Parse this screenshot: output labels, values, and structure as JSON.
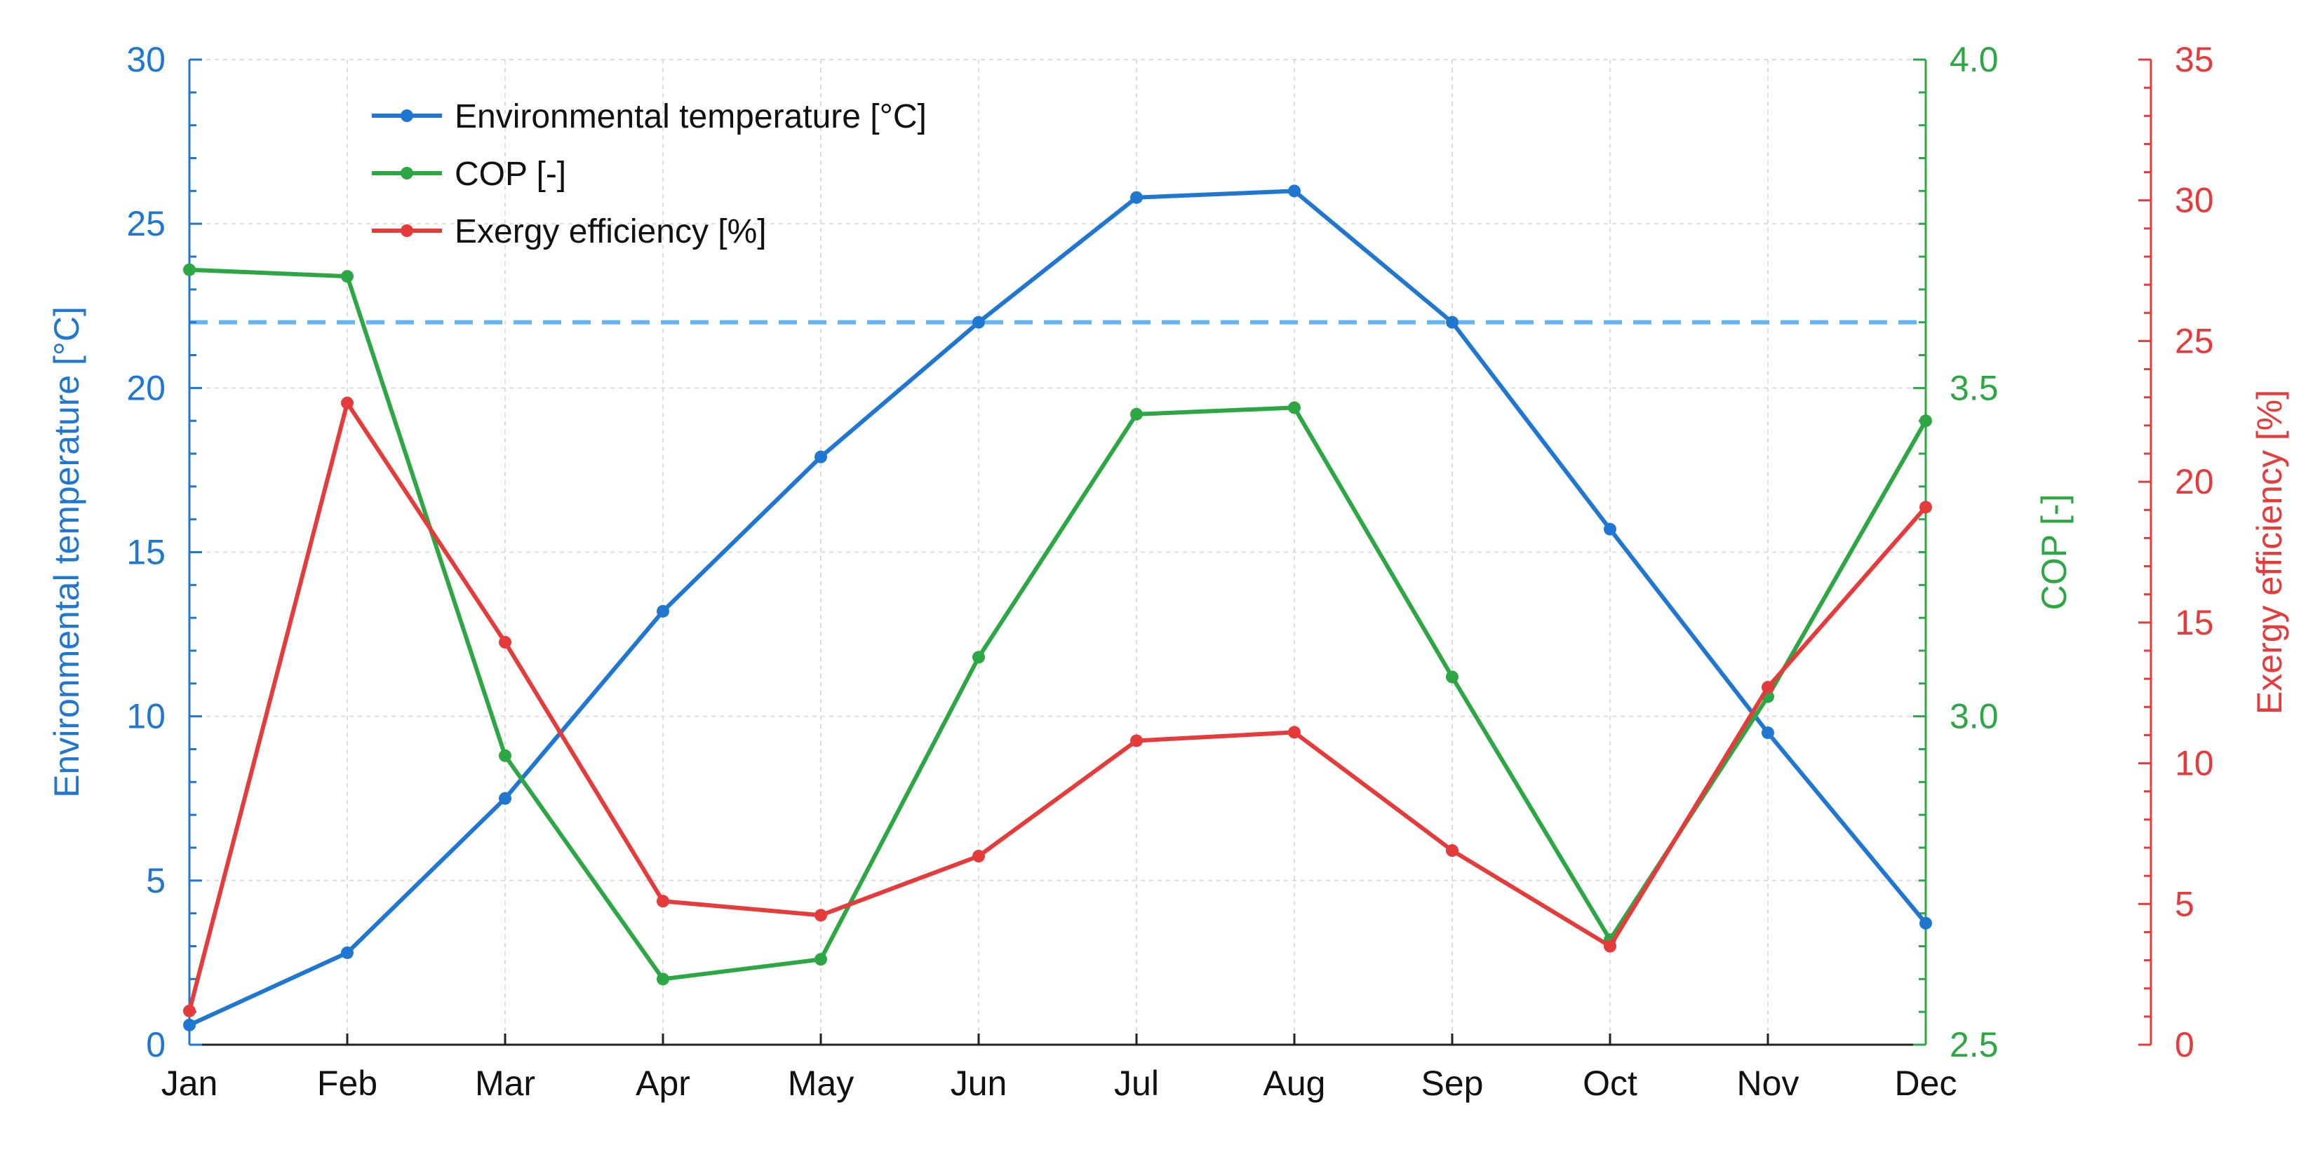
{
  "colors": {
    "temperature": "#1f77d2",
    "cop": "#2ca744",
    "exergy": "#e63b3b",
    "reference_line": "#64b5f6",
    "grid": "#dddddd",
    "axis": "#222222"
  },
  "chart_data": {
    "type": "line",
    "categories": [
      "Jan",
      "Feb",
      "Mar",
      "Apr",
      "May",
      "Jun",
      "Jul",
      "Aug",
      "Sep",
      "Oct",
      "Nov",
      "Dec"
    ],
    "grid": true,
    "legend_position": "top-left",
    "axes": {
      "left": {
        "label": "Environmental temperature [°C]",
        "ylim": [
          0,
          30
        ],
        "ticks": [
          0,
          5,
          10,
          15,
          20,
          25,
          30
        ],
        "tick_labels": [
          "0",
          "5",
          "10",
          "15",
          "20",
          "25",
          "30"
        ]
      },
      "right1": {
        "label": "COP [-]",
        "ylim": [
          2.5,
          4.0
        ],
        "ticks": [
          2.5,
          3.0,
          3.5,
          4.0
        ],
        "tick_labels": [
          "2.5",
          "3.0",
          "3.5",
          "4.0"
        ]
      },
      "right2": {
        "label": "Exergy efficiency [%]",
        "ylim": [
          0,
          35
        ],
        "ticks": [
          0,
          5,
          10,
          15,
          20,
          25,
          30,
          35
        ],
        "tick_labels": [
          "0",
          "5",
          "10",
          "15",
          "20",
          "25",
          "30",
          "35"
        ]
      }
    },
    "reference_line": {
      "axis": "left",
      "y": 22
    },
    "series": [
      {
        "name": "Environmental temperature [°C]",
        "axis": "left",
        "color": "#1f77d2",
        "values": [
          0.6,
          2.8,
          7.5,
          13.2,
          17.9,
          22.0,
          25.8,
          26.0,
          22.0,
          15.7,
          9.5,
          3.7
        ]
      },
      {
        "name": "COP [-]",
        "axis": "right1",
        "color": "#2ca744",
        "values": [
          3.68,
          3.67,
          2.94,
          2.6,
          2.63,
          3.09,
          3.46,
          3.47,
          3.06,
          2.66,
          3.03,
          3.45
        ]
      },
      {
        "name": "Exergy efficiency [%]",
        "axis": "right2",
        "color": "#e63b3b",
        "values": [
          1.2,
          22.8,
          14.3,
          5.1,
          4.6,
          6.7,
          10.8,
          11.1,
          6.9,
          3.5,
          12.7,
          19.1
        ]
      }
    ]
  }
}
